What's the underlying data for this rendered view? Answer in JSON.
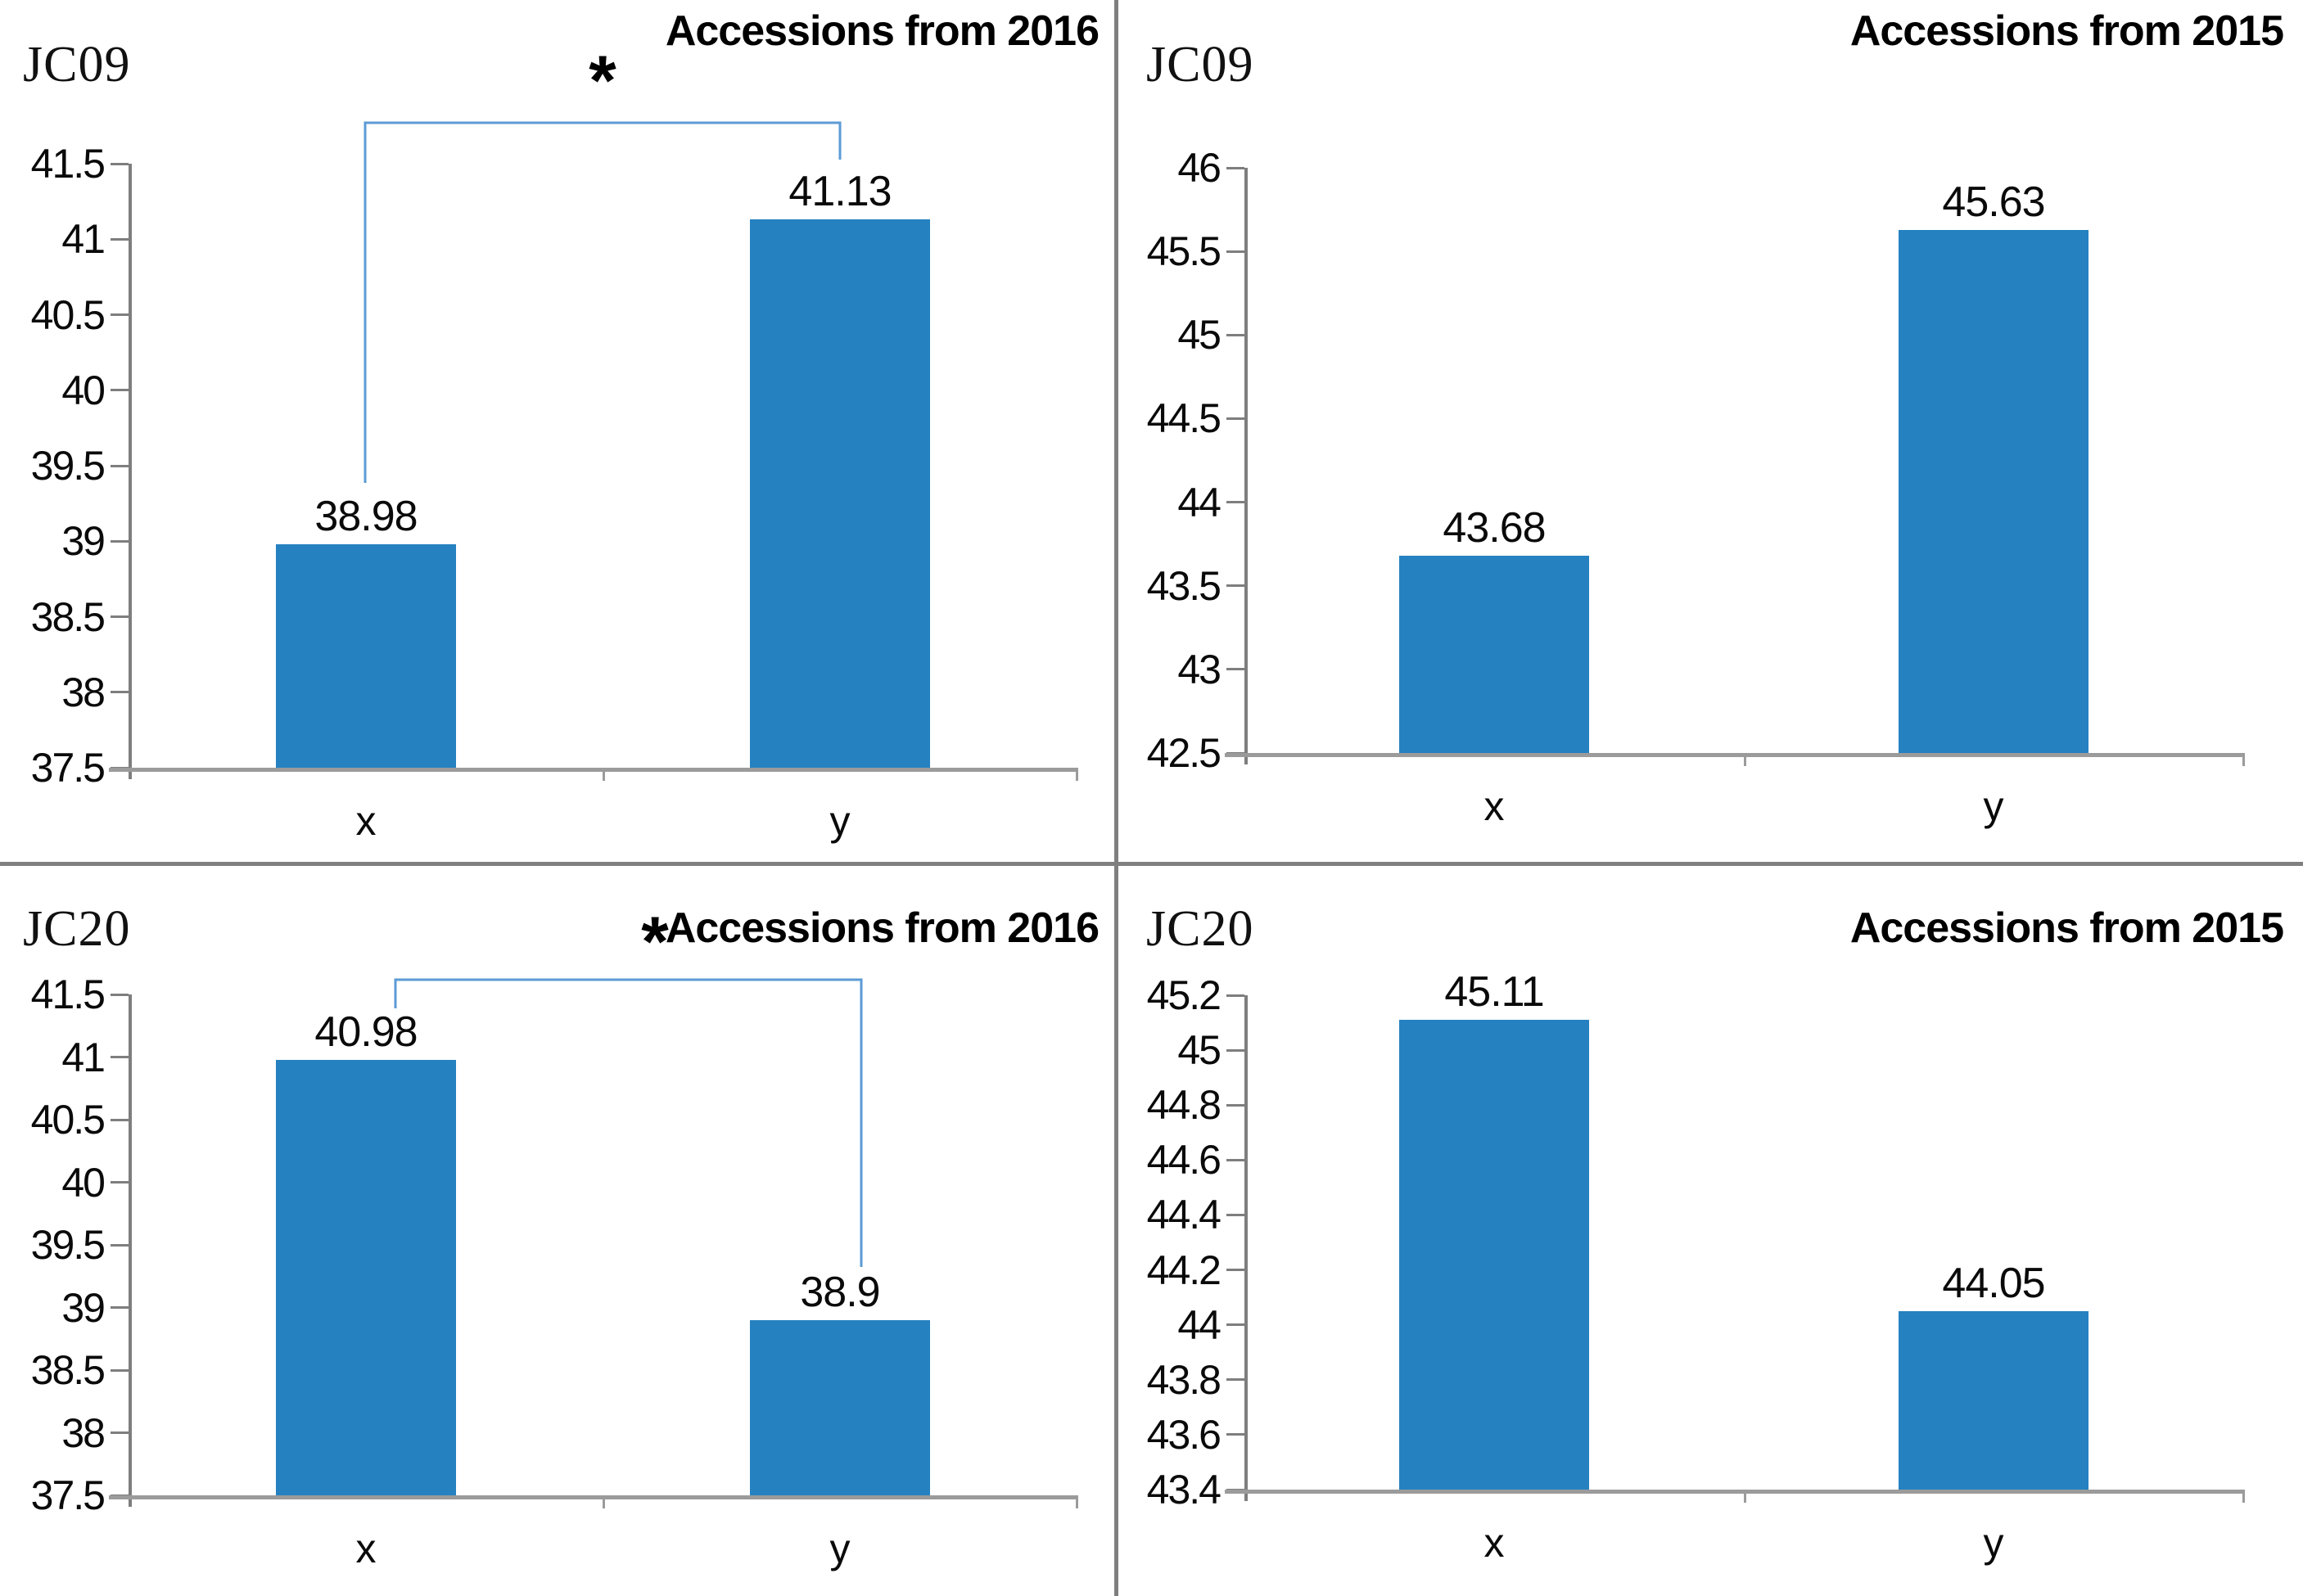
{
  "figure": {
    "description": "2x2 grid of bar charts comparing accessions",
    "panel_titles": [
      "Accessions from 2016",
      "Accessions from 2015"
    ],
    "group_labels": [
      "JC09",
      "JC20"
    ]
  },
  "colors": {
    "bar": "#2581C0",
    "bracket": "#5B9BD5",
    "axis": "#7E7E7E",
    "baseline": "#9B9B9B",
    "divider": "#7F7F7F",
    "text": "#000000"
  },
  "chart_data": [
    {
      "type": "bar",
      "panel": "top-left",
      "corner_label": "JC09",
      "title": "Accessions from 2016",
      "categories": [
        "x",
        "y"
      ],
      "values": [
        38.98,
        41.13
      ],
      "data_labels": [
        "38.98",
        "41.13"
      ],
      "xlabel": "",
      "ylabel": "",
      "ylim": [
        37.5,
        41.5
      ],
      "ytick_step": 0.5,
      "grid": false,
      "legend": false,
      "significance_bracket": {
        "label": "*",
        "connects": [
          "x",
          "y"
        ]
      }
    },
    {
      "type": "bar",
      "panel": "top-right",
      "corner_label": "JC09",
      "title": "Accessions from 2015",
      "categories": [
        "x",
        "y"
      ],
      "values": [
        43.68,
        45.63
      ],
      "data_labels": [
        "43.68",
        "45.63"
      ],
      "xlabel": "",
      "ylabel": "",
      "ylim": [
        42.5,
        46
      ],
      "ytick_step": 0.5,
      "grid": false,
      "legend": false,
      "significance_bracket": null
    },
    {
      "type": "bar",
      "panel": "bottom-left",
      "corner_label": "JC20",
      "title": "Accessions from 2016",
      "categories": [
        "x",
        "y"
      ],
      "values": [
        40.98,
        38.9
      ],
      "data_labels": [
        "40.98",
        "38.9"
      ],
      "xlabel": "",
      "ylabel": "",
      "ylim": [
        37.5,
        41.5
      ],
      "ytick_step": 0.5,
      "grid": false,
      "legend": false,
      "significance_bracket": {
        "label": "*",
        "connects": [
          "x",
          "y"
        ]
      }
    },
    {
      "type": "bar",
      "panel": "bottom-right",
      "corner_label": "JC20",
      "title": "Accessions from 2015",
      "categories": [
        "x",
        "y"
      ],
      "values": [
        45.11,
        44.05
      ],
      "data_labels": [
        "45.11",
        "44.05"
      ],
      "xlabel": "",
      "ylabel": "",
      "ylim": [
        43.4,
        45.2
      ],
      "ytick_step": 0.2,
      "grid": false,
      "legend": false,
      "significance_bracket": null
    }
  ]
}
